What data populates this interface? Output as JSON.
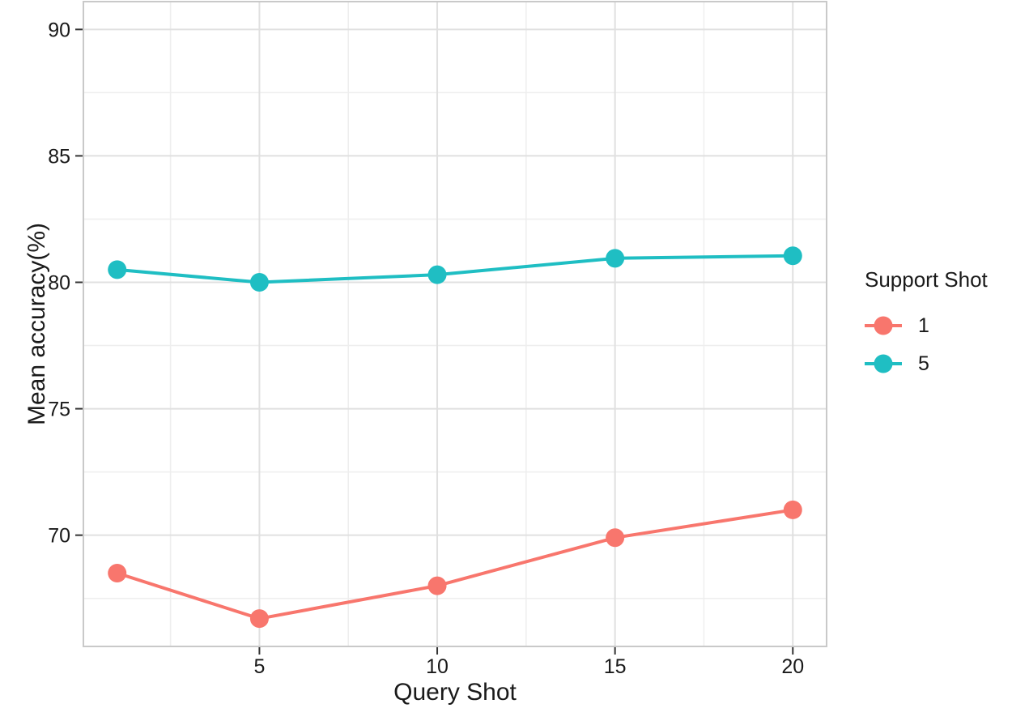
{
  "chart_data": {
    "type": "line",
    "x": [
      1,
      5,
      10,
      15,
      20
    ],
    "series": [
      {
        "name": "1",
        "color": "#F8766D",
        "values": [
          68.5,
          66.7,
          68.0,
          69.9,
          71.0
        ]
      },
      {
        "name": "5",
        "color": "#1FBEC3",
        "values": [
          80.5,
          80.0,
          80.3,
          80.95,
          81.05
        ]
      }
    ],
    "title": "",
    "xlabel": "Query Shot",
    "ylabel": "Mean accuracy(%)",
    "legend_title": "Support Shot",
    "legend_position": "right",
    "x_ticks": [
      5,
      10,
      15,
      20
    ],
    "x_tick_labels": [
      "5",
      "10",
      "15",
      "20"
    ],
    "y_ticks": [
      70,
      75,
      80,
      85,
      90
    ],
    "y_tick_labels": [
      "70",
      "75",
      "80",
      "85",
      "90"
    ],
    "x_minor_gridlines": [
      2.5,
      7.5,
      12.5,
      17.5
    ],
    "y_minor_gridlines": [
      67.5,
      72.5,
      77.5,
      82.5,
      87.5
    ],
    "xlim": [
      0.05,
      20.95
    ],
    "ylim": [
      65.6,
      91.1
    ],
    "grid": true,
    "colors": {
      "panel_border": "#c9c9c9",
      "grid_major": "#e0e0e0",
      "grid_minor": "#eeeeee",
      "tick_mark": "#333333",
      "text": "#1a1a1a",
      "background": "#ffffff"
    }
  }
}
